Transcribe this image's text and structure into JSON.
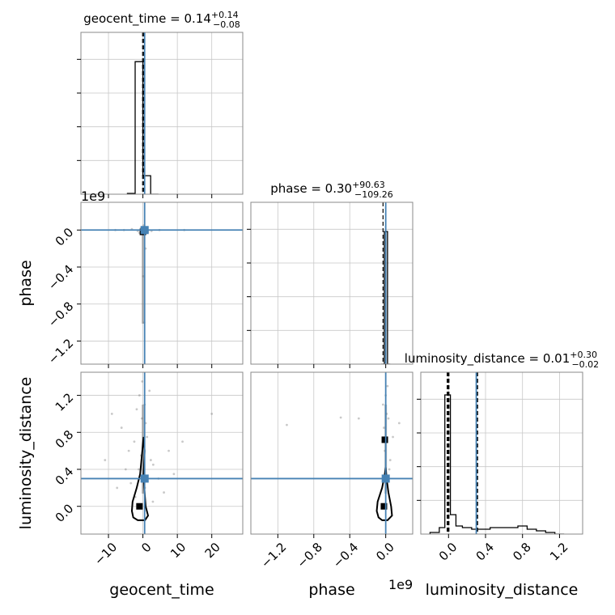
{
  "chart_data": {
    "type": "corner",
    "parameters": [
      "geocent_time",
      "phase",
      "luminosity_distance"
    ],
    "truths": {
      "geocent_time": 0.5,
      "phase": 0.0,
      "luminosity_distance": 0.3
    },
    "quantiles": {
      "geocent_time": [
        -0.08,
        0.22
      ],
      "phase": [
        -0.03,
        0.0
      ],
      "luminosity_distance": [
        -0.01,
        0.0,
        0.31
      ]
    },
    "panels": [
      {
        "id": "hist-geocent_time",
        "kind": "hist1d",
        "param": "geocent_time",
        "title_prefix": "geocent_time = 0.14",
        "title_upper": "+0.14",
        "title_lower": "−0.08",
        "xlim": [
          -18,
          29
        ],
        "ylim": [
          0,
          1.05
        ],
        "xticks": [
          -10,
          0,
          10,
          20
        ],
        "hist_edges": [
          -4.5,
          -2.25,
          0,
          2.25,
          4.5
        ],
        "hist_values": [
          0.005,
          0.86,
          0.12,
          0
        ]
      },
      {
        "id": "scatter-geocent_time-phase",
        "kind": "scatter2d",
        "xparam": "geocent_time",
        "yparam": "phase",
        "xlim": [
          -18,
          29
        ],
        "ylim": [
          -1.45,
          0.3
        ],
        "xticks": [
          -10,
          0,
          10,
          20
        ],
        "yticks": [
          0.0,
          -0.4,
          -0.8,
          -1.2
        ],
        "ytick_labels": [
          "0.0",
          "−0.4",
          "−0.8",
          "−1.2"
        ],
        "offset_text": "1e9",
        "points": [
          [
            -1.5,
            -0.01
          ],
          [
            1.2,
            0.0
          ],
          [
            0.3,
            -0.05
          ],
          [
            -0.6,
            0.02
          ],
          [
            2.5,
            -0.01
          ],
          [
            -3.2,
            0.01
          ],
          [
            0.8,
            -0.2
          ],
          [
            0.1,
            -0.5
          ],
          [
            4.8,
            0.0
          ],
          [
            -5.5,
            0.0
          ],
          [
            0.4,
            -1.0
          ],
          [
            0.2,
            0.05
          ],
          [
            1.5,
            -0.02
          ],
          [
            -1.0,
            -0.03
          ],
          [
            12,
            0.0
          ],
          [
            -8,
            0.0
          ]
        ],
        "mode": [
          [
            0,
            -0.02
          ]
        ]
      },
      {
        "id": "hist-phase",
        "kind": "hist1d",
        "param": "phase",
        "title_prefix": "phase = 0.30",
        "title_upper": "+90.63",
        "title_lower": "−109.26",
        "xlim": [
          -1.5,
          0.3
        ],
        "ylim": [
          0,
          1.05
        ],
        "xticks": [
          -1.2,
          -0.8,
          -0.4,
          0.0
        ],
        "xtick_labels": [
          "−1.2",
          "−0.8",
          "−0.4",
          "0.0"
        ],
        "offset_text": "1e9",
        "hist_edges": [
          -0.05,
          -0.015,
          0.02,
          0.05
        ],
        "hist_values": [
          0,
          0.86,
          0
        ]
      },
      {
        "id": "scatter-geocent_time-luminosity_distance",
        "kind": "scatter2d",
        "xparam": "geocent_time",
        "yparam": "luminosity_distance",
        "xlim": [
          -18,
          29
        ],
        "ylim": [
          -0.3,
          1.45
        ],
        "xticks": [
          -10,
          0,
          10,
          20
        ],
        "yticks": [
          0.0,
          0.4,
          0.8,
          1.2
        ],
        "ytick_labels": [
          "0.0",
          "0.4",
          "0.8",
          "1.2"
        ],
        "points": [
          [
            -1.0,
            1.2
          ],
          [
            0.5,
            1.1
          ],
          [
            -0.3,
            0.95
          ],
          [
            0.8,
            0.9
          ],
          [
            -2.5,
            0.7
          ],
          [
            1.2,
            0.75
          ],
          [
            -0.5,
            0.55
          ],
          [
            2.3,
            0.5
          ],
          [
            -4.1,
            0.6
          ],
          [
            3.0,
            0.45
          ],
          [
            -6.2,
            0.85
          ],
          [
            -1.8,
            1.05
          ],
          [
            4.5,
            0.3
          ],
          [
            -3.5,
            0.25
          ],
          [
            6.1,
            0.15
          ],
          [
            -9,
            1.0
          ],
          [
            -11,
            0.5
          ],
          [
            -7.5,
            0.2
          ],
          [
            9,
            0.35
          ],
          [
            11.5,
            0.7
          ],
          [
            20,
            1.0
          ],
          [
            -0.2,
            1.35
          ],
          [
            1.9,
            1.25
          ],
          [
            -1.2,
            0.4
          ],
          [
            0.6,
            0.2
          ],
          [
            -2.2,
            0.1
          ],
          [
            2.9,
            0.05
          ],
          [
            -5,
            0.4
          ],
          [
            7.5,
            0.6
          ]
        ],
        "mode": [
          [
            -1,
            0.0
          ]
        ],
        "contour": [
          [
            -0.8,
            0.35
          ],
          [
            -1.8,
            0.2
          ],
          [
            -3.0,
            0.05
          ],
          [
            -3.2,
            -0.05
          ],
          [
            -2.8,
            -0.12
          ],
          [
            -1.5,
            -0.15
          ],
          [
            0.6,
            -0.15
          ],
          [
            1.5,
            -0.1
          ],
          [
            0.8,
            0.0
          ],
          [
            0.4,
            0.2
          ],
          [
            0.2,
            0.35
          ],
          [
            0.5,
            0.6
          ],
          [
            0.2,
            0.75
          ],
          [
            -0.3,
            0.55
          ],
          [
            -0.8,
            0.35
          ]
        ]
      },
      {
        "id": "scatter-phase-luminosity_distance",
        "kind": "scatter2d",
        "xparam": "phase",
        "yparam": "luminosity_distance",
        "xlim": [
          -1.5,
          0.3
        ],
        "ylim": [
          -0.3,
          1.45
        ],
        "xticks": [
          -1.2,
          -0.8,
          -0.4,
          0.0
        ],
        "xtick_labels": [
          "−1.2",
          "−0.8",
          "−0.4",
          "0.0"
        ],
        "offset_text": "1e9",
        "points": [
          [
            0.0,
            1.2
          ],
          [
            0.01,
            1.0
          ],
          [
            -0.02,
            0.85
          ],
          [
            0.03,
            0.95
          ],
          [
            -0.5,
            0.96
          ],
          [
            -1.1,
            0.88
          ],
          [
            0.08,
            0.75
          ],
          [
            -0.3,
            0.95
          ],
          [
            0.15,
            0.9
          ],
          [
            0.05,
            0.5
          ],
          [
            -0.01,
            0.6
          ],
          [
            0.02,
            1.3
          ],
          [
            -0.03,
            1.1
          ],
          [
            0.04,
            0.4
          ]
        ],
        "mode": [
          [
            -0.02,
            0.0
          ],
          [
            -0.01,
            0.72
          ]
        ],
        "contour": [
          [
            -0.01,
            0.35
          ],
          [
            -0.04,
            0.2
          ],
          [
            -0.09,
            0.05
          ],
          [
            -0.1,
            -0.05
          ],
          [
            -0.08,
            -0.12
          ],
          [
            -0.04,
            -0.15
          ],
          [
            0.02,
            -0.15
          ],
          [
            0.07,
            -0.1
          ],
          [
            0.06,
            0.0
          ],
          [
            0.03,
            0.15
          ],
          [
            0.01,
            0.3
          ],
          [
            0.0,
            0.42
          ],
          [
            -0.01,
            0.35
          ]
        ]
      },
      {
        "id": "hist-luminosity_distance",
        "kind": "hist1d",
        "param": "luminosity_distance",
        "title_prefix": "luminosity_distance = 0.01",
        "title_upper": "+0.30",
        "title_lower": "−0.02",
        "xlim": [
          -0.3,
          1.45
        ],
        "ylim": [
          0,
          1.0
        ],
        "xticks": [
          0.0,
          0.4,
          0.8,
          1.2
        ],
        "xtick_labels": [
          "0.0",
          "0.4",
          "0.8",
          "1.2"
        ],
        "hist_edges": [
          -0.2,
          -0.1,
          -0.04,
          0.02,
          0.08,
          0.15,
          0.25,
          0.35,
          0.45,
          0.55,
          0.65,
          0.75,
          0.85,
          0.95,
          1.05,
          1.15,
          1.25
        ],
        "hist_values": [
          0.01,
          0.04,
          0.86,
          0.12,
          0.05,
          0.04,
          0.03,
          0.03,
          0.04,
          0.04,
          0.04,
          0.05,
          0.03,
          0.02,
          0.01,
          0.0
        ]
      }
    ],
    "axis_labels": {
      "x": [
        "geocent_time",
        "phase",
        "luminosity_distance"
      ],
      "y": [
        "phase",
        "luminosity_distance"
      ]
    },
    "colors": {
      "truth": "#4682b4",
      "hist": "#000000",
      "grid": "#c8c8c8",
      "points": "#888888"
    },
    "grid": true
  }
}
